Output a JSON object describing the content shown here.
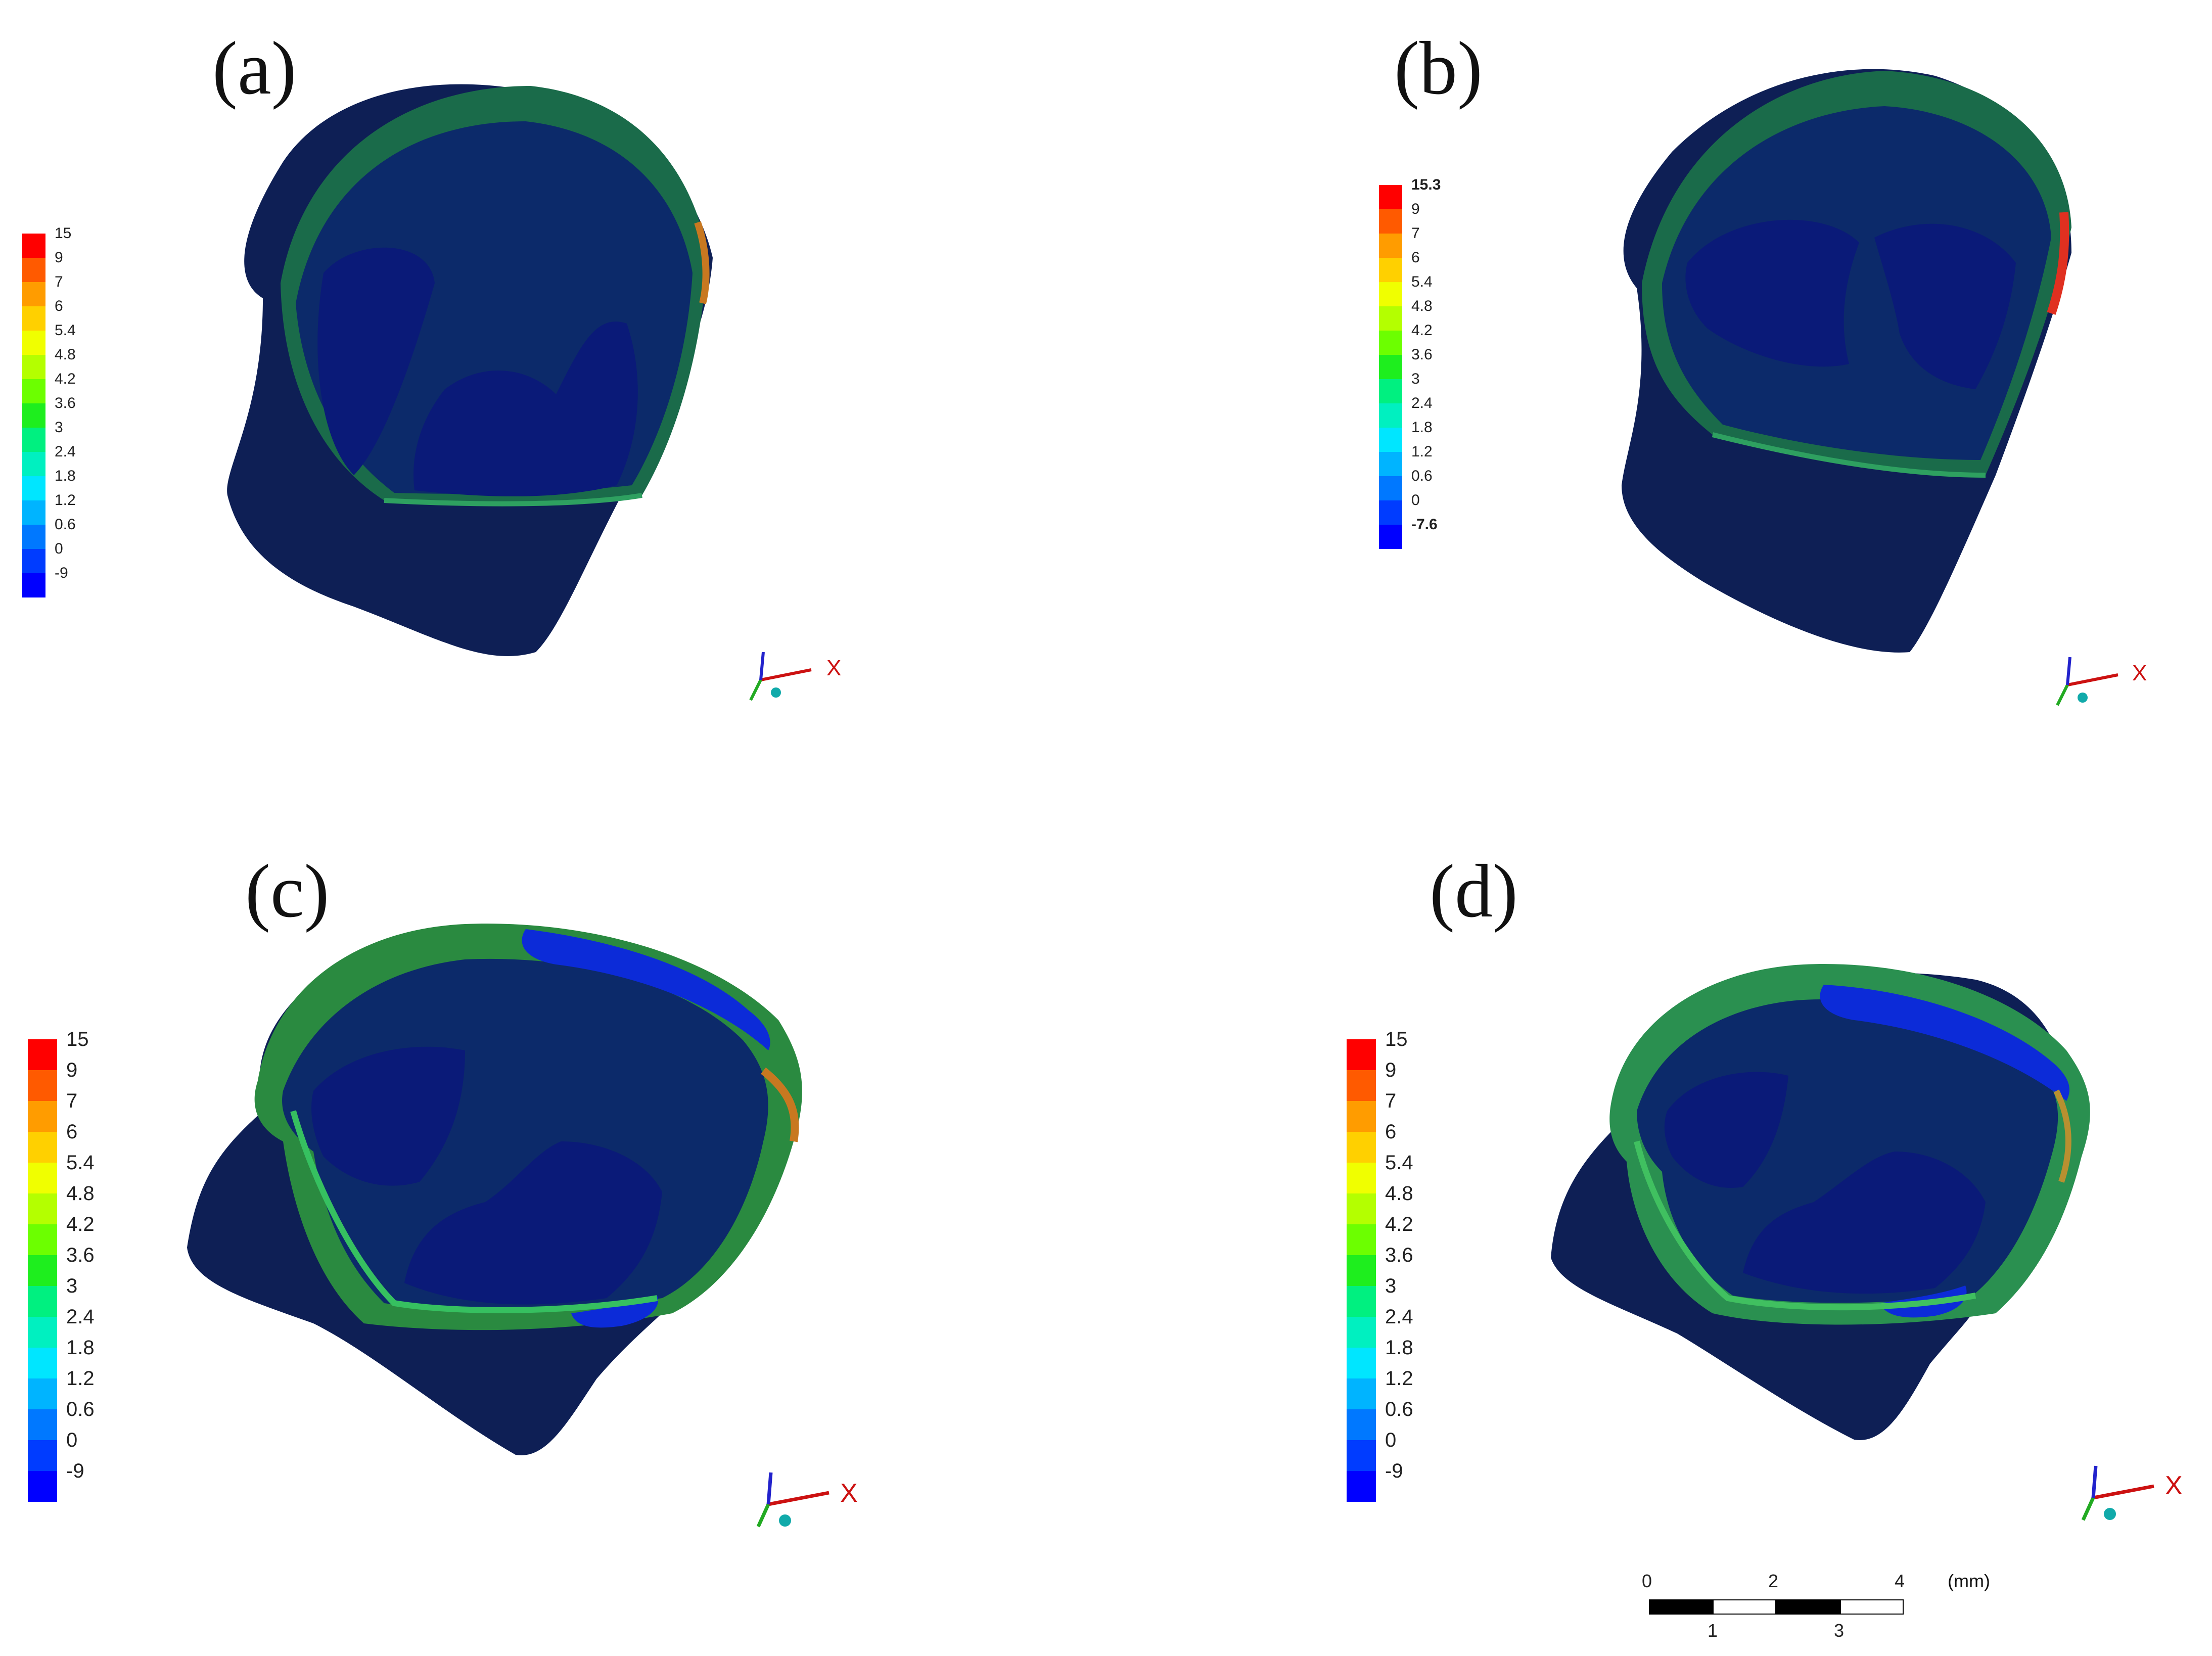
{
  "panels": [
    {
      "label": "(a)",
      "legend": [
        "15",
        "9",
        "7",
        "6",
        "5.4",
        "4.8",
        "4.2",
        "3.6",
        "3",
        "2.4",
        "1.8",
        "1.2",
        "0.6",
        "0",
        "-9"
      ],
      "axis": "X"
    },
    {
      "label": "(b)",
      "legend": [
        "15.3",
        "9",
        "7",
        "6",
        "5.4",
        "4.8",
        "4.2",
        "3.6",
        "3",
        "2.4",
        "1.8",
        "1.2",
        "0.6",
        "0",
        "-7.6"
      ],
      "axis": "X"
    },
    {
      "label": "(c)",
      "legend": [
        "15",
        "9",
        "7",
        "6",
        "5.4",
        "4.8",
        "4.2",
        "3.6",
        "3",
        "2.4",
        "1.8",
        "1.2",
        "0.6",
        "0",
        "-9"
      ],
      "axis": "X"
    },
    {
      "label": "(d)",
      "legend": [
        "15",
        "9",
        "7",
        "6",
        "5.4",
        "4.8",
        "4.2",
        "3.6",
        "3",
        "2.4",
        "1.8",
        "1.2",
        "0.6",
        "0",
        "-9"
      ],
      "axis": "X"
    }
  ],
  "legend_colors": [
    "#ff0000",
    "#ff5a00",
    "#ff9c00",
    "#ffd000",
    "#f0ff00",
    "#b4ff00",
    "#6cff00",
    "#1eee1e",
    "#00f080",
    "#00f0c0",
    "#00e6ff",
    "#00b4ff",
    "#0078ff",
    "#003cff",
    "#0000ff"
  ],
  "scale_bar": {
    "top_ticks": [
      "0",
      "2",
      "4"
    ],
    "bottom_ticks": [
      "1",
      "3"
    ],
    "unit": "(mm)"
  }
}
